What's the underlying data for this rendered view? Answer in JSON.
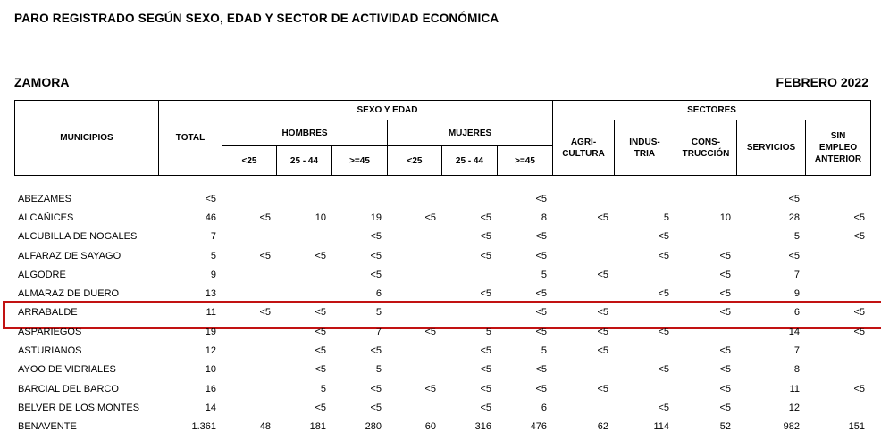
{
  "header": {
    "title": "PARO REGISTRADO SEGÚN SEXO, EDAD Y SECTOR DE ACTIVIDAD ECONÓMICA",
    "province": "ZAMORA",
    "period": "FEBRERO 2022"
  },
  "highlight_color": "#c21212",
  "table": {
    "header": {
      "municipios": "MUNICIPIOS",
      "total": "TOTAL",
      "sexo_edad": "SEXO Y EDAD",
      "sectores": "SECTORES",
      "hombres": "HOMBRES",
      "mujeres": "MUJERES",
      "age_cols": [
        "<25",
        "25 - 44",
        ">=45",
        "<25",
        "25 - 44",
        ">=45"
      ],
      "sector_cols": [
        "AGRI-\nCULTURA",
        "INDUS-\nTRIA",
        "CONS-\nTRUCCIÓN",
        "SERVICIOS",
        "SIN\nEMPLEO\nANTERIOR"
      ]
    },
    "rows": [
      {
        "name": "ABEZAMES",
        "highlight": false,
        "values": [
          "<5",
          "",
          "",
          "",
          "",
          "",
          "<5",
          "",
          "",
          "",
          "<5",
          ""
        ]
      },
      {
        "name": "ALCAÑICES",
        "highlight": false,
        "values": [
          "46",
          "<5",
          "10",
          "19",
          "<5",
          "<5",
          "8",
          "<5",
          "5",
          "10",
          "28",
          "<5"
        ]
      },
      {
        "name": "ALCUBILLA DE NOGALES",
        "highlight": false,
        "values": [
          "7",
          "",
          "",
          "<5",
          "",
          "<5",
          "<5",
          "",
          "<5",
          "",
          "5",
          "<5"
        ]
      },
      {
        "name": "ALFARAZ DE SAYAGO",
        "highlight": false,
        "values": [
          "5",
          "<5",
          "<5",
          "<5",
          "",
          "<5",
          "<5",
          "",
          "<5",
          "<5",
          "<5",
          ""
        ]
      },
      {
        "name": "ALGODRE",
        "highlight": false,
        "values": [
          "9",
          "",
          "",
          "<5",
          "",
          "",
          "5",
          "<5",
          "",
          "<5",
          "7",
          ""
        ]
      },
      {
        "name": "ALMARAZ DE DUERO",
        "highlight": false,
        "values": [
          "13",
          "",
          "",
          "6",
          "",
          "<5",
          "<5",
          "",
          "<5",
          "<5",
          "9",
          ""
        ]
      },
      {
        "name": "ARRABALDE",
        "highlight": true,
        "values": [
          "11",
          "<5",
          "<5",
          "5",
          "",
          "",
          "<5",
          "<5",
          "",
          "<5",
          "6",
          "<5"
        ]
      },
      {
        "name": "ASPARIEGOS",
        "highlight": false,
        "values": [
          "19",
          "",
          "<5",
          "7",
          "<5",
          "5",
          "<5",
          "<5",
          "<5",
          "",
          "14",
          "<5"
        ]
      },
      {
        "name": "ASTURIANOS",
        "highlight": false,
        "values": [
          "12",
          "",
          "<5",
          "<5",
          "",
          "<5",
          "5",
          "<5",
          "",
          "<5",
          "7",
          ""
        ]
      },
      {
        "name": "AYOO DE VIDRIALES",
        "highlight": false,
        "values": [
          "10",
          "",
          "<5",
          "5",
          "",
          "<5",
          "<5",
          "",
          "<5",
          "<5",
          "8",
          ""
        ]
      },
      {
        "name": "BARCIAL DEL BARCO",
        "highlight": false,
        "values": [
          "16",
          "",
          "5",
          "<5",
          "<5",
          "<5",
          "<5",
          "<5",
          "",
          "<5",
          "11",
          "<5"
        ]
      },
      {
        "name": "BELVER DE LOS MONTES",
        "highlight": false,
        "values": [
          "14",
          "",
          "<5",
          "<5",
          "",
          "<5",
          "6",
          "",
          "<5",
          "<5",
          "12",
          ""
        ]
      },
      {
        "name": "BENAVENTE",
        "highlight": false,
        "values": [
          "1.361",
          "48",
          "181",
          "280",
          "60",
          "316",
          "476",
          "62",
          "114",
          "52",
          "982",
          "151"
        ]
      }
    ]
  }
}
